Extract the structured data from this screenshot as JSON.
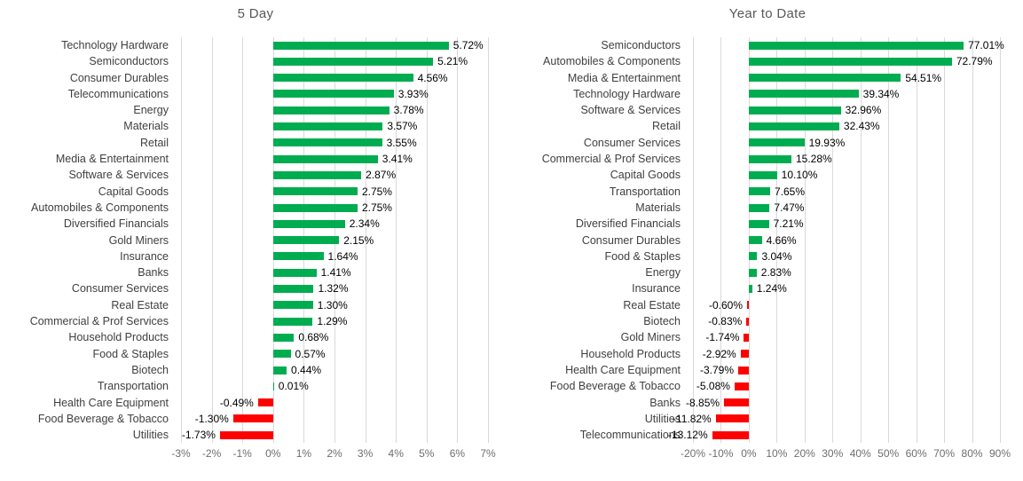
{
  "colors": {
    "positive_bar": "#00AC50",
    "negative_bar": "#FF0000",
    "gridline": "#D9D9D9",
    "title_text": "#595959",
    "category_text": "#404040",
    "value_text": "#000000",
    "axis_text": "#6E6E6E"
  },
  "chart_data": [
    {
      "type": "bar",
      "orientation": "horizontal",
      "title": "5 Day",
      "grid": true,
      "legend": false,
      "xlabel": "",
      "ylabel": "",
      "xlim": [
        -3,
        7
      ],
      "xtick_step": 1,
      "xtick_labels": [
        "-3%",
        "-2%",
        "-1%",
        "0%",
        "1%",
        "2%",
        "3%",
        "4%",
        "5%",
        "6%",
        "7%"
      ],
      "categories": [
        "Technology Hardware",
        "Semiconductors",
        "Consumer Durables",
        "Telecommunications",
        "Energy",
        "Materials",
        "Retail",
        "Media & Entertainment",
        "Software & Services",
        "Capital Goods",
        "Automobiles & Components",
        "Diversified Financials",
        "Gold Miners",
        "Insurance",
        "Banks",
        "Consumer Services",
        "Real Estate",
        "Commercial & Prof Services",
        "Household Products",
        "Food & Staples",
        "Biotech",
        "Transportation",
        "Health Care Equipment",
        "Food Beverage & Tobacco",
        "Utilities"
      ],
      "values": [
        5.72,
        5.21,
        4.56,
        3.93,
        3.78,
        3.57,
        3.55,
        3.41,
        2.87,
        2.75,
        2.75,
        2.34,
        2.15,
        1.64,
        1.41,
        1.32,
        1.3,
        1.29,
        0.68,
        0.57,
        0.44,
        0.01,
        -0.49,
        -1.3,
        -1.73
      ],
      "value_labels": [
        "5.72%",
        "5.21%",
        "4.56%",
        "3.93%",
        "3.78%",
        "3.57%",
        "3.55%",
        "3.41%",
        "2.87%",
        "2.75%",
        "2.75%",
        "2.34%",
        "2.15%",
        "1.64%",
        "1.41%",
        "1.32%",
        "1.30%",
        "1.29%",
        "0.68%",
        "0.57%",
        "0.44%",
        "0.01%",
        "-0.49%",
        "-1.30%",
        "-1.73%"
      ]
    },
    {
      "type": "bar",
      "orientation": "horizontal",
      "title": "Year to Date",
      "grid": true,
      "legend": false,
      "xlabel": "",
      "ylabel": "",
      "xlim": [
        -20,
        90
      ],
      "xtick_step": 10,
      "xtick_labels": [
        "-20%",
        "-10%",
        "0%",
        "10%",
        "20%",
        "30%",
        "40%",
        "50%",
        "60%",
        "70%",
        "80%",
        "90%"
      ],
      "categories": [
        "Semiconductors",
        "Automobiles & Components",
        "Media & Entertainment",
        "Technology Hardware",
        "Software & Services",
        "Retail",
        "Consumer Services",
        "Commercial & Prof Services",
        "Capital Goods",
        "Transportation",
        "Materials",
        "Diversified Financials",
        "Consumer Durables",
        "Food & Staples",
        "Energy",
        "Insurance",
        "Real Estate",
        "Biotech",
        "Gold Miners",
        "Household Products",
        "Health Care Equipment",
        "Food Beverage & Tobacco",
        "Banks",
        "Utilities",
        "Telecommunications"
      ],
      "values": [
        77.01,
        72.79,
        54.51,
        39.34,
        32.96,
        32.43,
        19.93,
        15.28,
        10.1,
        7.65,
        7.47,
        7.21,
        4.66,
        3.04,
        2.83,
        1.24,
        -0.6,
        -0.83,
        -1.74,
        -2.92,
        -3.79,
        -5.08,
        -8.85,
        -11.82,
        -13.12
      ],
      "value_labels": [
        "77.01%",
        "72.79%",
        "54.51%",
        "39.34%",
        "32.96%",
        "32.43%",
        "19.93%",
        "15.28%",
        "10.10%",
        "7.65%",
        "7.47%",
        "7.21%",
        "4.66%",
        "3.04%",
        "2.83%",
        "1.24%",
        "-0.60%",
        "-0.83%",
        "-1.74%",
        "-2.92%",
        "-3.79%",
        "-5.08%",
        "-8.85%",
        "-11.82%",
        "-13.12%"
      ]
    }
  ]
}
